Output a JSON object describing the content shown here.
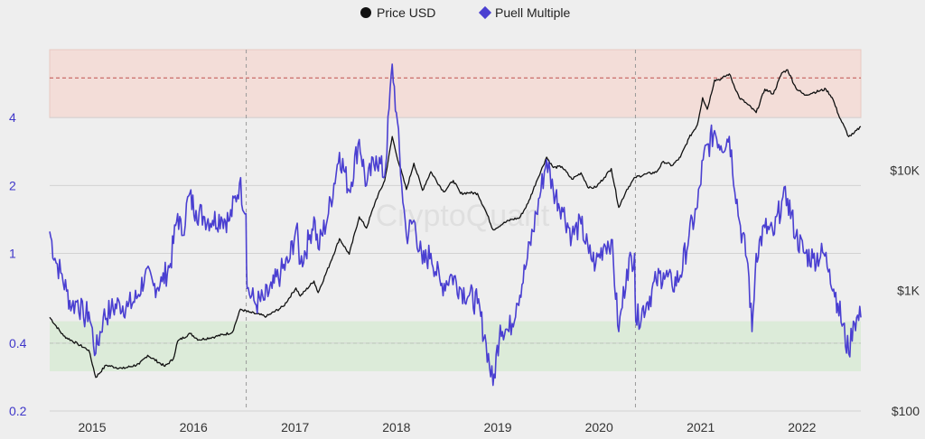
{
  "chart_data": {
    "type": "line",
    "title": "",
    "legend": {
      "placement": "top-center",
      "items": [
        {
          "label": "Price USD",
          "marker": "circle",
          "color": "#111111"
        },
        {
          "label": "Puell Multiple",
          "marker": "diamond",
          "color": "#4a3fd1"
        }
      ]
    },
    "watermark": "CryptoQuant",
    "x_axis": {
      "type": "time",
      "range": [
        "2014-08-01",
        "2022-08-01"
      ],
      "tick_labels": [
        "2015",
        "2016",
        "2017",
        "2018",
        "2019",
        "2020",
        "2021",
        "2022"
      ],
      "tick_values": [
        "2015-01-01",
        "2016-01-01",
        "2017-01-01",
        "2018-01-01",
        "2019-01-01",
        "2020-01-01",
        "2021-01-01",
        "2022-01-01"
      ]
    },
    "y_left": {
      "label": "",
      "scale": "log",
      "range": [
        0.2,
        8
      ],
      "tick_labels": [
        "0.2",
        "0.4",
        "1",
        "2",
        "4"
      ],
      "tick_values": [
        0.2,
        0.4,
        1,
        2,
        4
      ],
      "color": "#3f37c9"
    },
    "y_right": {
      "label": "",
      "scale": "log",
      "range": [
        100,
        100000
      ],
      "tick_labels": [
        "$100",
        "$1K",
        "$10K"
      ],
      "tick_values": [
        100,
        1000,
        10000
      ]
    },
    "bands": [
      {
        "name": "overvalued zone",
        "from": 4,
        "to": 8,
        "color": "#f3ddd8",
        "line": 6,
        "line_color": "#c0504d"
      },
      {
        "name": "undervalued zone",
        "from": 0.3,
        "to": 0.5,
        "color": "#dcebd9",
        "line": 0.4,
        "line_color": "#5a8f4f"
      }
    ],
    "halving_lines": [
      "2016-07-09",
      "2020-05-11"
    ],
    "grid": true,
    "series": [
      {
        "name": "Puell Multiple",
        "axis": "left",
        "color": "#4a3fd1",
        "points": [
          [
            "2014-08-01",
            1.25
          ],
          [
            "2014-08-20",
            0.95
          ],
          [
            "2014-09-10",
            0.82
          ],
          [
            "2014-10-01",
            0.68
          ],
          [
            "2014-10-20",
            0.58
          ],
          [
            "2014-11-10",
            0.62
          ],
          [
            "2014-12-01",
            0.52
          ],
          [
            "2014-12-20",
            0.55
          ],
          [
            "2015-01-14",
            0.36
          ],
          [
            "2015-02-10",
            0.52
          ],
          [
            "2015-03-10",
            0.56
          ],
          [
            "2015-04-10",
            0.6
          ],
          [
            "2015-05-10",
            0.58
          ],
          [
            "2015-06-10",
            0.63
          ],
          [
            "2015-07-10",
            0.8
          ],
          [
            "2015-08-10",
            0.72
          ],
          [
            "2015-09-10",
            0.75
          ],
          [
            "2015-10-10",
            0.9
          ],
          [
            "2015-11-05",
            1.5
          ],
          [
            "2015-11-20",
            1.2
          ],
          [
            "2015-12-15",
            1.8
          ],
          [
            "2016-01-10",
            1.55
          ],
          [
            "2016-02-10",
            1.45
          ],
          [
            "2016-03-10",
            1.4
          ],
          [
            "2016-04-10",
            1.45
          ],
          [
            "2016-05-10",
            1.4
          ],
          [
            "2016-06-15",
            2.05
          ],
          [
            "2016-07-08",
            1.5
          ],
          [
            "2016-07-12",
            0.7
          ],
          [
            "2016-08-10",
            0.6
          ],
          [
            "2016-09-10",
            0.62
          ],
          [
            "2016-10-10",
            0.7
          ],
          [
            "2016-11-10",
            0.82
          ],
          [
            "2016-12-10",
            0.92
          ],
          [
            "2017-01-05",
            1.3
          ],
          [
            "2017-01-20",
            0.9
          ],
          [
            "2017-02-20",
            1.15
          ],
          [
            "2017-03-10",
            1.45
          ],
          [
            "2017-03-25",
            1.05
          ],
          [
            "2017-05-01",
            1.5
          ],
          [
            "2017-06-10",
            2.8
          ],
          [
            "2017-07-15",
            1.9
          ],
          [
            "2017-08-20",
            3.2
          ],
          [
            "2017-09-15",
            2.0
          ],
          [
            "2017-10-20",
            2.7
          ],
          [
            "2017-11-20",
            2.2
          ],
          [
            "2017-12-17",
            6.9
          ],
          [
            "2018-01-01",
            4.2
          ],
          [
            "2018-01-20",
            2.0
          ],
          [
            "2018-02-06",
            1.2
          ],
          [
            "2018-03-05",
            1.4
          ],
          [
            "2018-04-05",
            0.9
          ],
          [
            "2018-05-05",
            1.0
          ],
          [
            "2018-06-10",
            0.72
          ],
          [
            "2018-07-20",
            0.8
          ],
          [
            "2018-08-20",
            0.7
          ],
          [
            "2018-09-20",
            0.65
          ],
          [
            "2018-10-20",
            0.6
          ],
          [
            "2018-11-20",
            0.4
          ],
          [
            "2018-12-15",
            0.26
          ],
          [
            "2019-01-10",
            0.48
          ],
          [
            "2019-02-10",
            0.45
          ],
          [
            "2019-03-10",
            0.6
          ],
          [
            "2019-04-10",
            0.85
          ],
          [
            "2019-05-20",
            1.5
          ],
          [
            "2019-06-26",
            2.6
          ],
          [
            "2019-07-20",
            1.9
          ],
          [
            "2019-08-20",
            1.6
          ],
          [
            "2019-09-25",
            1.2
          ],
          [
            "2019-10-28",
            1.35
          ],
          [
            "2019-11-25",
            1.0
          ],
          [
            "2019-12-20",
            0.9
          ],
          [
            "2020-01-20",
            1.1
          ],
          [
            "2020-02-14",
            1.15
          ],
          [
            "2020-03-12",
            0.45
          ],
          [
            "2020-04-10",
            0.85
          ],
          [
            "2020-05-08",
            1.0
          ],
          [
            "2020-05-12",
            0.5
          ],
          [
            "2020-06-20",
            0.6
          ],
          [
            "2020-07-25",
            0.75
          ],
          [
            "2020-08-20",
            0.82
          ],
          [
            "2020-09-20",
            0.72
          ],
          [
            "2020-10-20",
            0.8
          ],
          [
            "2020-11-20",
            1.2
          ],
          [
            "2020-12-20",
            1.6
          ],
          [
            "2021-01-10",
            2.6
          ],
          [
            "2021-02-20",
            3.5
          ],
          [
            "2021-03-15",
            3.0
          ],
          [
            "2021-04-14",
            3.3
          ],
          [
            "2021-05-20",
            1.4
          ],
          [
            "2021-06-20",
            0.9
          ],
          [
            "2021-07-05",
            0.45
          ],
          [
            "2021-07-20",
            1.0
          ],
          [
            "2021-08-20",
            1.3
          ],
          [
            "2021-09-20",
            1.2
          ],
          [
            "2021-10-20",
            1.7
          ],
          [
            "2021-11-10",
            1.75
          ],
          [
            "2021-12-10",
            1.2
          ],
          [
            "2022-01-10",
            1.0
          ],
          [
            "2022-02-10",
            0.95
          ],
          [
            "2022-03-20",
            1.0
          ],
          [
            "2022-04-10",
            0.85
          ],
          [
            "2022-05-10",
            0.6
          ],
          [
            "2022-06-18",
            0.36
          ],
          [
            "2022-07-05",
            0.5
          ],
          [
            "2022-08-01",
            0.52
          ]
        ]
      },
      {
        "name": "Price USD",
        "axis": "right",
        "color": "#111111",
        "points": [
          [
            "2014-08-01",
            600
          ],
          [
            "2014-09-20",
            420
          ],
          [
            "2014-11-10",
            360
          ],
          [
            "2014-12-20",
            320
          ],
          [
            "2015-01-14",
            190
          ],
          [
            "2015-02-20",
            240
          ],
          [
            "2015-04-20",
            225
          ],
          [
            "2015-06-20",
            245
          ],
          [
            "2015-07-20",
            290
          ],
          [
            "2015-09-20",
            235
          ],
          [
            "2015-10-20",
            270
          ],
          [
            "2015-11-05",
            380
          ],
          [
            "2015-12-20",
            440
          ],
          [
            "2016-01-20",
            390
          ],
          [
            "2016-03-20",
            415
          ],
          [
            "2016-05-20",
            450
          ],
          [
            "2016-06-18",
            700
          ],
          [
            "2016-07-20",
            660
          ],
          [
            "2016-09-20",
            610
          ],
          [
            "2016-11-20",
            740
          ],
          [
            "2017-01-04",
            1050
          ],
          [
            "2017-01-20",
            900
          ],
          [
            "2017-03-10",
            1200
          ],
          [
            "2017-03-25",
            960
          ],
          [
            "2017-05-10",
            1750
          ],
          [
            "2017-06-10",
            2700
          ],
          [
            "2017-07-15",
            2000
          ],
          [
            "2017-08-20",
            4100
          ],
          [
            "2017-09-15",
            3300
          ],
          [
            "2017-10-20",
            5700
          ],
          [
            "2017-11-20",
            8200
          ],
          [
            "2017-12-17",
            19000
          ],
          [
            "2018-01-01",
            13500
          ],
          [
            "2018-02-06",
            6900
          ],
          [
            "2018-03-05",
            11400
          ],
          [
            "2018-04-05",
            6800
          ],
          [
            "2018-05-05",
            9700
          ],
          [
            "2018-06-20",
            6600
          ],
          [
            "2018-07-25",
            8200
          ],
          [
            "2018-08-20",
            6400
          ],
          [
            "2018-09-20",
            6500
          ],
          [
            "2018-10-20",
            6400
          ],
          [
            "2018-11-20",
            4500
          ],
          [
            "2018-12-15",
            3200
          ],
          [
            "2019-01-20",
            3600
          ],
          [
            "2019-02-20",
            3900
          ],
          [
            "2019-03-20",
            4000
          ],
          [
            "2019-04-20",
            5300
          ],
          [
            "2019-05-20",
            8000
          ],
          [
            "2019-06-26",
            12800
          ],
          [
            "2019-07-20",
            10500
          ],
          [
            "2019-08-20",
            10700
          ],
          [
            "2019-09-25",
            8400
          ],
          [
            "2019-10-28",
            9500
          ],
          [
            "2019-11-25",
            7100
          ],
          [
            "2019-12-20",
            7200
          ],
          [
            "2020-01-20",
            8700
          ],
          [
            "2020-02-14",
            10300
          ],
          [
            "2020-03-12",
            4900
          ],
          [
            "2020-04-10",
            6900
          ],
          [
            "2020-05-10",
            8700
          ],
          [
            "2020-06-20",
            9300
          ],
          [
            "2020-07-25",
            9600
          ],
          [
            "2020-08-20",
            11800
          ],
          [
            "2020-09-20",
            10900
          ],
          [
            "2020-10-20",
            12800
          ],
          [
            "2020-11-20",
            18500
          ],
          [
            "2020-12-20",
            23800
          ],
          [
            "2021-01-08",
            40000
          ],
          [
            "2021-01-25",
            32000
          ],
          [
            "2021-02-20",
            56000
          ],
          [
            "2021-03-15",
            57000
          ],
          [
            "2021-04-14",
            63000
          ],
          [
            "2021-05-20",
            40000
          ],
          [
            "2021-06-20",
            35000
          ],
          [
            "2021-07-20",
            30000
          ],
          [
            "2021-08-20",
            47000
          ],
          [
            "2021-09-20",
            43000
          ],
          [
            "2021-10-20",
            64000
          ],
          [
            "2021-11-10",
            68000
          ],
          [
            "2021-12-10",
            48000
          ],
          [
            "2022-01-10",
            42000
          ],
          [
            "2022-02-10",
            44000
          ],
          [
            "2022-03-28",
            47000
          ],
          [
            "2022-04-20",
            40000
          ],
          [
            "2022-05-12",
            29000
          ],
          [
            "2022-06-18",
            19000
          ],
          [
            "2022-07-05",
            20000
          ],
          [
            "2022-08-01",
            23000
          ]
        ]
      }
    ]
  }
}
